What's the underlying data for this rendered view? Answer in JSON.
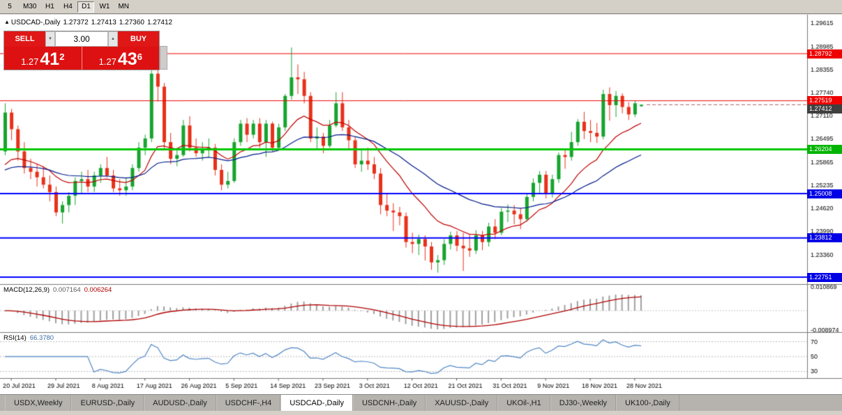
{
  "toolbar": {
    "timeframes": [
      {
        "label": "5",
        "active": false
      },
      {
        "label": "M30",
        "active": false
      },
      {
        "label": "H1",
        "active": false
      },
      {
        "label": "H4",
        "active": false
      },
      {
        "label": "D1",
        "active": true
      },
      {
        "label": "W1",
        "active": false
      },
      {
        "label": "MN",
        "active": false
      }
    ]
  },
  "chart": {
    "marker": "▲",
    "symbol": "USDCAD-,Daily",
    "open": "1.27372",
    "high": "1.27413",
    "low": "1.27360",
    "close": "1.27412"
  },
  "trade_panel": {
    "sell_label": "SELL",
    "buy_label": "BUY",
    "volume": "3.00",
    "spinner_down": "▼",
    "spinner_up": "▲",
    "sell_price": {
      "prefix": "1.27",
      "big": "41",
      "sup": "2"
    },
    "buy_price": {
      "prefix": "1.27",
      "big": "43",
      "sup": "6"
    }
  },
  "y_axis": {
    "ticks": [
      "1.29615",
      "1.28985",
      "1.28355",
      "1.27740",
      "1.27110",
      "1.26495",
      "1.25865",
      "1.25235",
      "1.24620",
      "1.23990",
      "1.23360"
    ]
  },
  "levels": [
    {
      "price": 1.28792,
      "label": "1.28792",
      "color": "#ee0000",
      "badge": "#ee0000",
      "width": 1
    },
    {
      "price": 1.27519,
      "label": "1.27519",
      "color": "#ee0000",
      "badge": "#ee0000",
      "width": 1
    },
    {
      "price": 1.26204,
      "label": "1.26204",
      "color": "#00c800",
      "badge": "#00b400",
      "width": 3
    },
    {
      "price": 1.25008,
      "label": "1.25008",
      "color": "#0000ff",
      "badge": "#0000e6",
      "width": 2
    },
    {
      "price": 1.23812,
      "label": "1.23812",
      "color": "#0000ff",
      "badge": "#0000e6",
      "width": 2
    },
    {
      "price": 1.22751,
      "label": "1.22751",
      "color": "#0000ff",
      "badge": "#0000e6",
      "width": 2
    }
  ],
  "bid_line": {
    "price": 1.27412,
    "label": "1.27412",
    "badge": "#3f3f3f",
    "color": "#b06060"
  },
  "macd": {
    "label": "MACD(12,26,9)",
    "main_value": "0.007164",
    "signal_value": "0.006264",
    "axis_max": "0.010869",
    "axis_min": "-0.008974",
    "fast": 12,
    "slow": 26,
    "signal": 9
  },
  "rsi": {
    "label": "RSI(14)",
    "value": "66.3780",
    "period": 14,
    "levels": [
      70,
      50,
      30
    ]
  },
  "chart_data": {
    "type": "candlestick",
    "symbol": "USDCAD",
    "timeframe": "Daily",
    "y_range": [
      1.2262,
      1.2979
    ],
    "x_labels": [
      {
        "index": 1,
        "text": "20 Jul 2021"
      },
      {
        "index": 8,
        "text": "29 Jul 2021"
      },
      {
        "index": 15,
        "text": "8 Aug 2021"
      },
      {
        "index": 22,
        "text": "17 Aug 2021"
      },
      {
        "index": 29,
        "text": "26 Aug 2021"
      },
      {
        "index": 36,
        "text": "5 Sep 2021"
      },
      {
        "index": 43,
        "text": "14 Sep 2021"
      },
      {
        "index": 50,
        "text": "23 Sep 2021"
      },
      {
        "index": 57,
        "text": "3 Oct 2021"
      },
      {
        "index": 64,
        "text": "12 Oct 2021"
      },
      {
        "index": 71,
        "text": "21 Oct 2021"
      },
      {
        "index": 78,
        "text": "31 Oct 2021"
      },
      {
        "index": 85,
        "text": "9 Nov 2021"
      },
      {
        "index": 92,
        "text": "18 Nov 2021"
      },
      {
        "index": 99,
        "text": "28 Nov 2021"
      }
    ],
    "overlays": {
      "ma_fast": {
        "type": "ema",
        "period": 13,
        "color": "#c00000"
      },
      "ma_slow": {
        "type": "ema",
        "period": 34,
        "color": "#001a8c"
      }
    },
    "ohlc": [
      [
        1.2615,
        1.2745,
        1.2605,
        1.272
      ],
      [
        1.272,
        1.273,
        1.2645,
        1.2675
      ],
      [
        1.2675,
        1.2685,
        1.259,
        1.2615
      ],
      [
        1.2615,
        1.264,
        1.2555,
        1.257
      ],
      [
        1.257,
        1.2595,
        1.254,
        1.256
      ],
      [
        1.256,
        1.258,
        1.252,
        1.2545
      ],
      [
        1.2545,
        1.2575,
        1.2515,
        1.2525
      ],
      [
        1.2525,
        1.255,
        1.248,
        1.2505
      ],
      [
        1.2505,
        1.252,
        1.244,
        1.245
      ],
      [
        1.245,
        1.248,
        1.242,
        1.247
      ],
      [
        1.247,
        1.2505,
        1.245,
        1.2495
      ],
      [
        1.2495,
        1.2545,
        1.247,
        1.2535
      ],
      [
        1.2535,
        1.256,
        1.25,
        1.254
      ],
      [
        1.254,
        1.2565,
        1.2505,
        1.252
      ],
      [
        1.252,
        1.256,
        1.2505,
        1.255
      ],
      [
        1.255,
        1.258,
        1.253,
        1.257
      ],
      [
        1.257,
        1.26,
        1.2545,
        1.255
      ],
      [
        1.255,
        1.2565,
        1.2505,
        1.2515
      ],
      [
        1.2515,
        1.254,
        1.2495,
        1.251
      ],
      [
        1.251,
        1.2545,
        1.2495,
        1.252
      ],
      [
        1.252,
        1.258,
        1.251,
        1.257
      ],
      [
        1.257,
        1.264,
        1.256,
        1.2625
      ],
      [
        1.2625,
        1.266,
        1.2605,
        1.265
      ],
      [
        1.265,
        1.2835,
        1.264,
        1.2825
      ],
      [
        1.2825,
        1.2838,
        1.275,
        1.279
      ],
      [
        1.279,
        1.28,
        1.262,
        1.264
      ],
      [
        1.264,
        1.2665,
        1.258,
        1.2595
      ],
      [
        1.2595,
        1.2625,
        1.2575,
        1.2605
      ],
      [
        1.2605,
        1.27,
        1.26,
        1.2685
      ],
      [
        1.2685,
        1.271,
        1.2615,
        1.2625
      ],
      [
        1.2625,
        1.265,
        1.26,
        1.261
      ],
      [
        1.261,
        1.264,
        1.259,
        1.262
      ],
      [
        1.262,
        1.265,
        1.26,
        1.2625
      ],
      [
        1.2625,
        1.2635,
        1.255,
        1.2565
      ],
      [
        1.2565,
        1.258,
        1.251,
        1.2525
      ],
      [
        1.2525,
        1.256,
        1.2515,
        1.2535
      ],
      [
        1.2535,
        1.265,
        1.253,
        1.264
      ],
      [
        1.264,
        1.27,
        1.263,
        1.269
      ],
      [
        1.269,
        1.2705,
        1.264,
        1.266
      ],
      [
        1.266,
        1.27,
        1.265,
        1.269
      ],
      [
        1.269,
        1.2705,
        1.2625,
        1.264
      ],
      [
        1.264,
        1.27,
        1.26,
        1.269
      ],
      [
        1.269,
        1.2695,
        1.2615,
        1.2625
      ],
      [
        1.2625,
        1.269,
        1.262,
        1.268
      ],
      [
        1.268,
        1.277,
        1.267,
        1.2765
      ],
      [
        1.2765,
        1.2896,
        1.2755,
        1.2815
      ],
      [
        1.2815,
        1.285,
        1.277,
        1.281
      ],
      [
        1.281,
        1.283,
        1.2745,
        1.2765
      ],
      [
        1.2765,
        1.2775,
        1.264,
        1.265
      ],
      [
        1.265,
        1.268,
        1.262,
        1.2655
      ],
      [
        1.2655,
        1.2665,
        1.261,
        1.263
      ],
      [
        1.263,
        1.27,
        1.2625,
        1.2685
      ],
      [
        1.2685,
        1.2775,
        1.268,
        1.2745
      ],
      [
        1.2745,
        1.2775,
        1.267,
        1.268
      ],
      [
        1.268,
        1.27,
        1.262,
        1.2645
      ],
      [
        1.2645,
        1.2655,
        1.257,
        1.258
      ],
      [
        1.258,
        1.262,
        1.256,
        1.259
      ],
      [
        1.259,
        1.2625,
        1.2565,
        1.258
      ],
      [
        1.258,
        1.26,
        1.254,
        1.2555
      ],
      [
        1.2555,
        1.257,
        1.2445,
        1.247
      ],
      [
        1.247,
        1.25,
        1.244,
        1.2455
      ],
      [
        1.2455,
        1.2475,
        1.24,
        1.245
      ],
      [
        1.245,
        1.2465,
        1.2415,
        1.244
      ],
      [
        1.244,
        1.245,
        1.2355,
        1.237
      ],
      [
        1.237,
        1.2395,
        1.234,
        1.2365
      ],
      [
        1.2365,
        1.239,
        1.2335,
        1.2378
      ],
      [
        1.2378,
        1.2388,
        1.232,
        1.2358
      ],
      [
        1.2358,
        1.237,
        1.2295,
        1.2315
      ],
      [
        1.2315,
        1.2335,
        1.2287,
        1.2321
      ],
      [
        1.2321,
        1.2378,
        1.2308,
        1.2365
      ],
      [
        1.2365,
        1.2398,
        1.235,
        1.2388
      ],
      [
        1.2388,
        1.24,
        1.2345,
        1.236
      ],
      [
        1.236,
        1.2395,
        1.2292,
        1.2353
      ],
      [
        1.2353,
        1.2392,
        1.233,
        1.2347
      ],
      [
        1.2347,
        1.2402,
        1.2338,
        1.2388
      ],
      [
        1.2388,
        1.24,
        1.2348,
        1.237
      ],
      [
        1.237,
        1.2422,
        1.2358,
        1.2412
      ],
      [
        1.2412,
        1.2432,
        1.2378,
        1.2395
      ],
      [
        1.2395,
        1.2462,
        1.2388,
        1.2452
      ],
      [
        1.2452,
        1.2472,
        1.2424,
        1.2455
      ],
      [
        1.2455,
        1.247,
        1.2418,
        1.2445
      ],
      [
        1.2445,
        1.2462,
        1.2405,
        1.2432
      ],
      [
        1.2432,
        1.2502,
        1.2425,
        1.2492
      ],
      [
        1.2492,
        1.2542,
        1.248,
        1.253
      ],
      [
        1.253,
        1.2562,
        1.25,
        1.2552
      ],
      [
        1.2552,
        1.2562,
        1.2488,
        1.25
      ],
      [
        1.25,
        1.2552,
        1.249,
        1.254
      ],
      [
        1.254,
        1.2612,
        1.253,
        1.2605
      ],
      [
        1.2605,
        1.2622,
        1.2568,
        1.26
      ],
      [
        1.26,
        1.2668,
        1.259,
        1.264
      ],
      [
        1.264,
        1.2702,
        1.263,
        1.2695
      ],
      [
        1.2695,
        1.2722,
        1.2648,
        1.267
      ],
      [
        1.267,
        1.27,
        1.264,
        1.2665
      ],
      [
        1.2665,
        1.2692,
        1.2638,
        1.2655
      ],
      [
        1.2655,
        1.2782,
        1.2648,
        1.277
      ],
      [
        1.277,
        1.2788,
        1.2698,
        1.274
      ],
      [
        1.274,
        1.2778,
        1.2708,
        1.2765
      ],
      [
        1.2765,
        1.2772,
        1.2718,
        1.2735
      ],
      [
        1.2735,
        1.2748,
        1.27,
        1.2715
      ],
      [
        1.2715,
        1.2752,
        1.2708,
        1.2745
      ],
      [
        1.27372,
        1.27413,
        1.2736,
        1.27412
      ]
    ]
  },
  "tabs": [
    {
      "label": "USDX,Weekly",
      "active": false
    },
    {
      "label": "EURUSD-,Daily",
      "active": false
    },
    {
      "label": "AUDUSD-,Daily",
      "active": false
    },
    {
      "label": "USDCHF-,H4",
      "active": false
    },
    {
      "label": "USDCAD-,Daily",
      "active": true
    },
    {
      "label": "USDCNH-,Daily",
      "active": false
    },
    {
      "label": "XAUUSD-,Daily",
      "active": false
    },
    {
      "label": "UKOil-,H1",
      "active": false
    },
    {
      "label": "DJ30-,Weekly",
      "active": false
    },
    {
      "label": "UK100-,Daily",
      "active": false
    }
  ]
}
